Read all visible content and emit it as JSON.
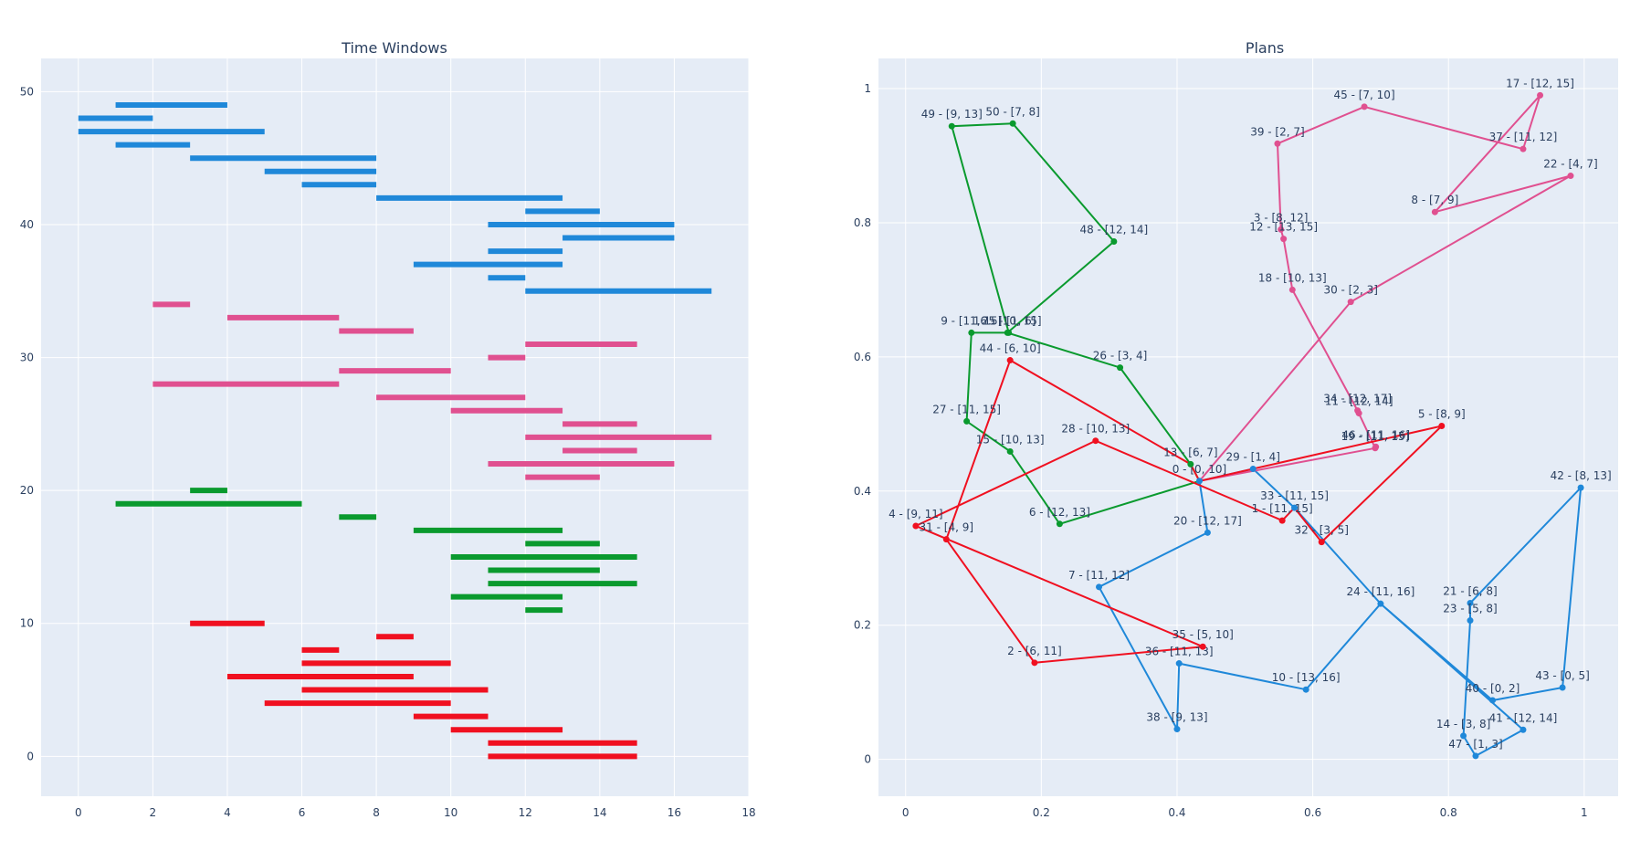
{
  "chart_data": [
    {
      "type": "bar",
      "orientation": "horizontal-ranges",
      "title": "Time Windows",
      "xlim": [
        -1,
        18
      ],
      "ylim": [
        -3,
        52.5
      ],
      "xticks": [
        0,
        2,
        4,
        6,
        8,
        10,
        12,
        14,
        16,
        18
      ],
      "yticks": [
        0,
        10,
        20,
        30,
        40,
        50
      ],
      "grid": true,
      "series": [
        {
          "color": "#1f88d9",
          "ranges": [
            [
              1,
              4,
              49
            ],
            [
              0,
              2,
              48
            ],
            [
              0,
              5,
              47
            ],
            [
              1,
              3,
              46
            ],
            [
              3,
              8,
              45
            ],
            [
              5,
              8,
              44
            ],
            [
              6,
              8,
              43
            ],
            [
              8,
              13,
              42
            ],
            [
              12,
              14,
              41
            ],
            [
              11,
              16,
              40
            ],
            [
              13,
              16,
              39
            ],
            [
              11,
              13,
              38
            ],
            [
              9,
              13,
              37
            ],
            [
              11,
              12,
              36
            ],
            [
              12,
              17,
              35
            ]
          ]
        },
        {
          "color": "#e05090",
          "ranges": [
            [
              2,
              3,
              34
            ],
            [
              4,
              7,
              33
            ],
            [
              7,
              9,
              32
            ],
            [
              12,
              15,
              31
            ],
            [
              11,
              12,
              30
            ],
            [
              7,
              10,
              29
            ],
            [
              2,
              7,
              28
            ],
            [
              8,
              12,
              27
            ],
            [
              10,
              13,
              26
            ],
            [
              13,
              15,
              25
            ],
            [
              12,
              17,
              24
            ],
            [
              13,
              15,
              23
            ],
            [
              11,
              16,
              22
            ],
            [
              12,
              14,
              21
            ]
          ]
        },
        {
          "color": "#0a9a2e",
          "ranges": [
            [
              3,
              4,
              20
            ],
            [
              1,
              6,
              19
            ],
            [
              7,
              8,
              18
            ],
            [
              9,
              13,
              17
            ],
            [
              12,
              14,
              16
            ],
            [
              10,
              15,
              15
            ],
            [
              11,
              14,
              14
            ],
            [
              11,
              15,
              13
            ],
            [
              10,
              13,
              12
            ],
            [
              12,
              13,
              11
            ]
          ]
        },
        {
          "color": "#f01020",
          "ranges": [
            [
              3,
              5,
              10
            ],
            [
              8,
              9,
              9
            ],
            [
              6,
              7,
              8
            ],
            [
              6,
              10,
              7
            ],
            [
              4,
              9,
              6
            ],
            [
              6,
              11,
              5
            ],
            [
              5,
              10,
              4
            ],
            [
              9,
              11,
              3
            ],
            [
              10,
              13,
              2
            ],
            [
              11,
              15,
              1
            ],
            [
              11,
              15,
              0
            ]
          ]
        }
      ]
    },
    {
      "type": "line",
      "title": "Plans",
      "xlim": [
        -0.04,
        1.05
      ],
      "ylim": [
        -0.055,
        1.045
      ],
      "xticks": [
        0,
        0.2,
        0.4,
        0.6,
        0.8,
        1
      ],
      "xtick_labels": [
        "0",
        "0.2",
        "0.4",
        "0.6",
        "0.8",
        "1"
      ],
      "yticks": [
        0,
        0.2,
        0.4,
        0.6,
        0.8,
        1
      ],
      "ytick_labels": [
        "0",
        "0.2",
        "0.4",
        "0.6",
        "0.8",
        "1"
      ],
      "grid": true,
      "series": [
        {
          "color": "#1f88d9",
          "route": [
            0,
            29,
            33,
            24,
            40,
            43,
            42,
            21,
            23,
            14,
            47,
            41,
            24,
            10,
            36,
            38,
            7,
            20,
            0
          ],
          "points": [
            {
              "id": 0,
              "label": "0 - [0, 10]",
              "x": 0.433,
              "y": 0.415
            },
            {
              "id": 29,
              "label": "29 - [1, 4]",
              "x": 0.512,
              "y": 0.433
            },
            {
              "id": 33,
              "label": "33 - [11, 15]",
              "x": 0.573,
              "y": 0.375
            },
            {
              "id": 24,
              "label": "24 - [11, 16]",
              "x": 0.7,
              "y": 0.232
            },
            {
              "id": 40,
              "label": "40 - [0, 2]",
              "x": 0.865,
              "y": 0.088
            },
            {
              "id": 43,
              "label": "43 - [0, 5]",
              "x": 0.968,
              "y": 0.107
            },
            {
              "id": 42,
              "label": "42 - [8, 13]",
              "x": 0.995,
              "y": 0.405
            },
            {
              "id": 21,
              "label": "21 - [6, 8]",
              "x": 0.832,
              "y": 0.233
            },
            {
              "id": 23,
              "label": "23 - [5, 8]",
              "x": 0.832,
              "y": 0.207
            },
            {
              "id": 14,
              "label": "14 - [3, 8]",
              "x": 0.822,
              "y": 0.035
            },
            {
              "id": 47,
              "label": "47 - [1, 3]",
              "x": 0.84,
              "y": 0.005
            },
            {
              "id": 41,
              "label": "41 - [12, 14]",
              "x": 0.91,
              "y": 0.044
            },
            {
              "id": 10,
              "label": "10 - [13, 16]",
              "x": 0.59,
              "y": 0.104
            },
            {
              "id": 36,
              "label": "36 - [11, 13]",
              "x": 0.403,
              "y": 0.143
            },
            {
              "id": 38,
              "label": "38 - [9, 13]",
              "x": 0.4,
              "y": 0.045
            },
            {
              "id": 7,
              "label": "7 - [11, 12]",
              "x": 0.285,
              "y": 0.257
            },
            {
              "id": 20,
              "label": "20 - [12, 17]",
              "x": 0.445,
              "y": 0.338
            }
          ]
        },
        {
          "color": "#e05090",
          "route": [
            0,
            30,
            22,
            8,
            17,
            37,
            45,
            39,
            3,
            12,
            18,
            34,
            19,
            0
          ],
          "points": [
            {
              "id": 30,
              "label": "30 - [2, 3]",
              "x": 0.656,
              "y": 0.682
            },
            {
              "id": 22,
              "label": "22 - [4, 7]",
              "x": 0.98,
              "y": 0.87
            },
            {
              "id": 8,
              "label": "8 - [7, 9]",
              "x": 0.78,
              "y": 0.816
            },
            {
              "id": 17,
              "label": "17 - [12, 15]",
              "x": 0.935,
              "y": 0.99
            },
            {
              "id": 37,
              "label": "37 - [11, 12]",
              "x": 0.91,
              "y": 0.91
            },
            {
              "id": 45,
              "label": "45 - [7, 10]",
              "x": 0.676,
              "y": 0.973
            },
            {
              "id": 39,
              "label": "39 - [2, 7]",
              "x": 0.548,
              "y": 0.918
            },
            {
              "id": 3,
              "label": "3 - [8, 12]",
              "x": 0.553,
              "y": 0.79
            },
            {
              "id": 12,
              "label": "12 - [13, 15]",
              "x": 0.557,
              "y": 0.776
            },
            {
              "id": 18,
              "label": "18 - [10, 13]",
              "x": 0.57,
              "y": 0.7
            },
            {
              "id": 34,
              "label": "34 - [12, 17]",
              "x": 0.666,
              "y": 0.52
            },
            {
              "id": 11,
              "label": "11 - [12, 14]",
              "x": 0.668,
              "y": 0.516
            },
            {
              "id": 19,
              "label": "19 - [11, 15]",
              "x": 0.692,
              "y": 0.464
            },
            {
              "id": 46,
              "label": "46 - [11, 16]",
              "x": 0.693,
              "y": 0.466
            }
          ]
        },
        {
          "color": "#0a9a2e",
          "route": [
            0,
            13,
            26,
            16,
            48,
            50,
            49,
            25,
            9,
            27,
            15,
            6,
            0
          ],
          "points": [
            {
              "id": 13,
              "label": "13 - [6, 7]",
              "x": 0.42,
              "y": 0.44
            },
            {
              "id": 26,
              "label": "26 - [3, 4]",
              "x": 0.316,
              "y": 0.584
            },
            {
              "id": 16,
              "label": "16 - [10, 15]",
              "x": 0.15,
              "y": 0.636
            },
            {
              "id": 48,
              "label": "48 - [12, 14]",
              "x": 0.307,
              "y": 0.772
            },
            {
              "id": 50,
              "label": "50 - [7, 8]",
              "x": 0.158,
              "y": 0.948
            },
            {
              "id": 49,
              "label": "49 - [9, 13]",
              "x": 0.068,
              "y": 0.944
            },
            {
              "id": 25,
              "label": "25 - [1, 6]",
              "x": 0.152,
              "y": 0.636
            },
            {
              "id": 9,
              "label": "9 - [11, 15]",
              "x": 0.097,
              "y": 0.636
            },
            {
              "id": 27,
              "label": "27 - [11, 15]",
              "x": 0.09,
              "y": 0.504
            },
            {
              "id": 15,
              "label": "15 - [10, 13]",
              "x": 0.154,
              "y": 0.459
            },
            {
              "id": 6,
              "label": "6 - [12, 13]",
              "x": 0.227,
              "y": 0.351
            }
          ]
        },
        {
          "color": "#f01020",
          "route": [
            0,
            13,
            44,
            31,
            2,
            35,
            4,
            28,
            1,
            33,
            32,
            5,
            0
          ],
          "points": [
            {
              "id": 44,
              "label": "44 - [6, 10]",
              "x": 0.154,
              "y": 0.595
            },
            {
              "id": 31,
              "label": "31 - [4, 9]",
              "x": 0.06,
              "y": 0.328
            },
            {
              "id": 2,
              "label": "2 - [6, 11]",
              "x": 0.19,
              "y": 0.144
            },
            {
              "id": 35,
              "label": "35 - [5, 10]",
              "x": 0.438,
              "y": 0.168
            },
            {
              "id": 4,
              "label": "4 - [9, 11]",
              "x": 0.015,
              "y": 0.348
            },
            {
              "id": 28,
              "label": "28 - [10, 13]",
              "x": 0.28,
              "y": 0.475
            },
            {
              "id": 1,
              "label": "1 - [11, 15]",
              "x": 0.555,
              "y": 0.356
            },
            {
              "id": 32,
              "label": "32 - [3, 5]",
              "x": 0.613,
              "y": 0.324
            },
            {
              "id": 5,
              "label": "5 - [8, 9]",
              "x": 0.79,
              "y": 0.497
            }
          ]
        }
      ]
    }
  ]
}
